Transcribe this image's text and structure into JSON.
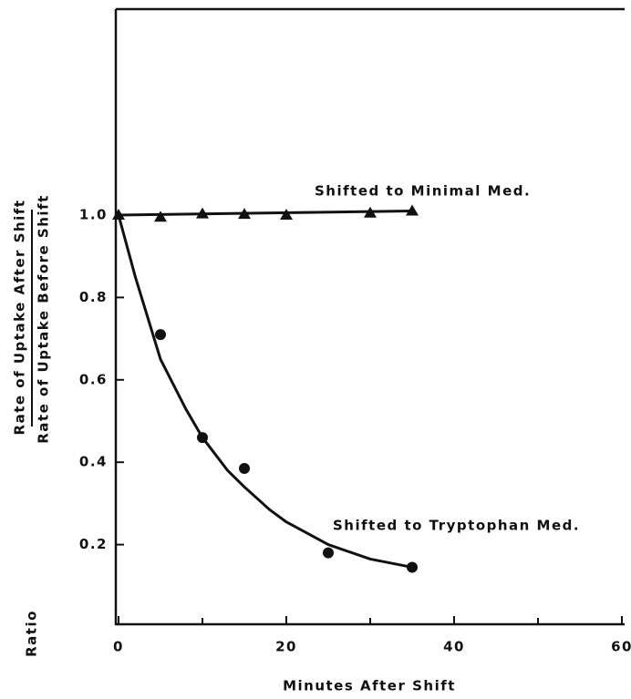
{
  "chart_data": {
    "type": "scatter",
    "xlabel": "Minutes After Shift",
    "ylabel": "Ratio",
    "ylabel_numerator": "Rate of Uptake After Shift",
    "ylabel_denominator": "Rate of Uptake Before Shift",
    "annotations": [
      "Shifted to Minimal Med.",
      "Shifted to Tryptophan Med."
    ],
    "xlim": [
      0,
      60
    ],
    "ylim": [
      0,
      1.5
    ],
    "xticks": [
      0,
      20,
      40,
      60
    ],
    "xminor": [
      10,
      30,
      50
    ],
    "yticks": [
      {
        "value": 1,
        "label": "1.0"
      },
      0.8,
      0.6,
      0.4,
      0.2
    ],
    "color": "#111111",
    "series": [
      {
        "marker": "triangle",
        "x": [
          0,
          5,
          10,
          15,
          20,
          30,
          35
        ],
        "values": [
          1.0,
          0.995,
          1.003,
          1.002,
          1.0,
          1.005,
          1.01
        ]
      },
      {
        "marker": "circle",
        "x": [
          5,
          10,
          15,
          25,
          35
        ],
        "values": [
          0.71,
          0.46,
          0.385,
          0.18,
          0.145
        ]
      },
      {
        "marker": "none",
        "x": [
          0,
          35
        ],
        "values": [
          1.0,
          1.01
        ]
      },
      {
        "marker": "none",
        "x": [
          0,
          2,
          5,
          8,
          10,
          13,
          15,
          18,
          20,
          25,
          30,
          35
        ],
        "values": [
          1.0,
          0.85,
          0.65,
          0.53,
          0.46,
          0.38,
          0.34,
          0.285,
          0.255,
          0.2,
          0.165,
          0.145
        ]
      }
    ]
  }
}
